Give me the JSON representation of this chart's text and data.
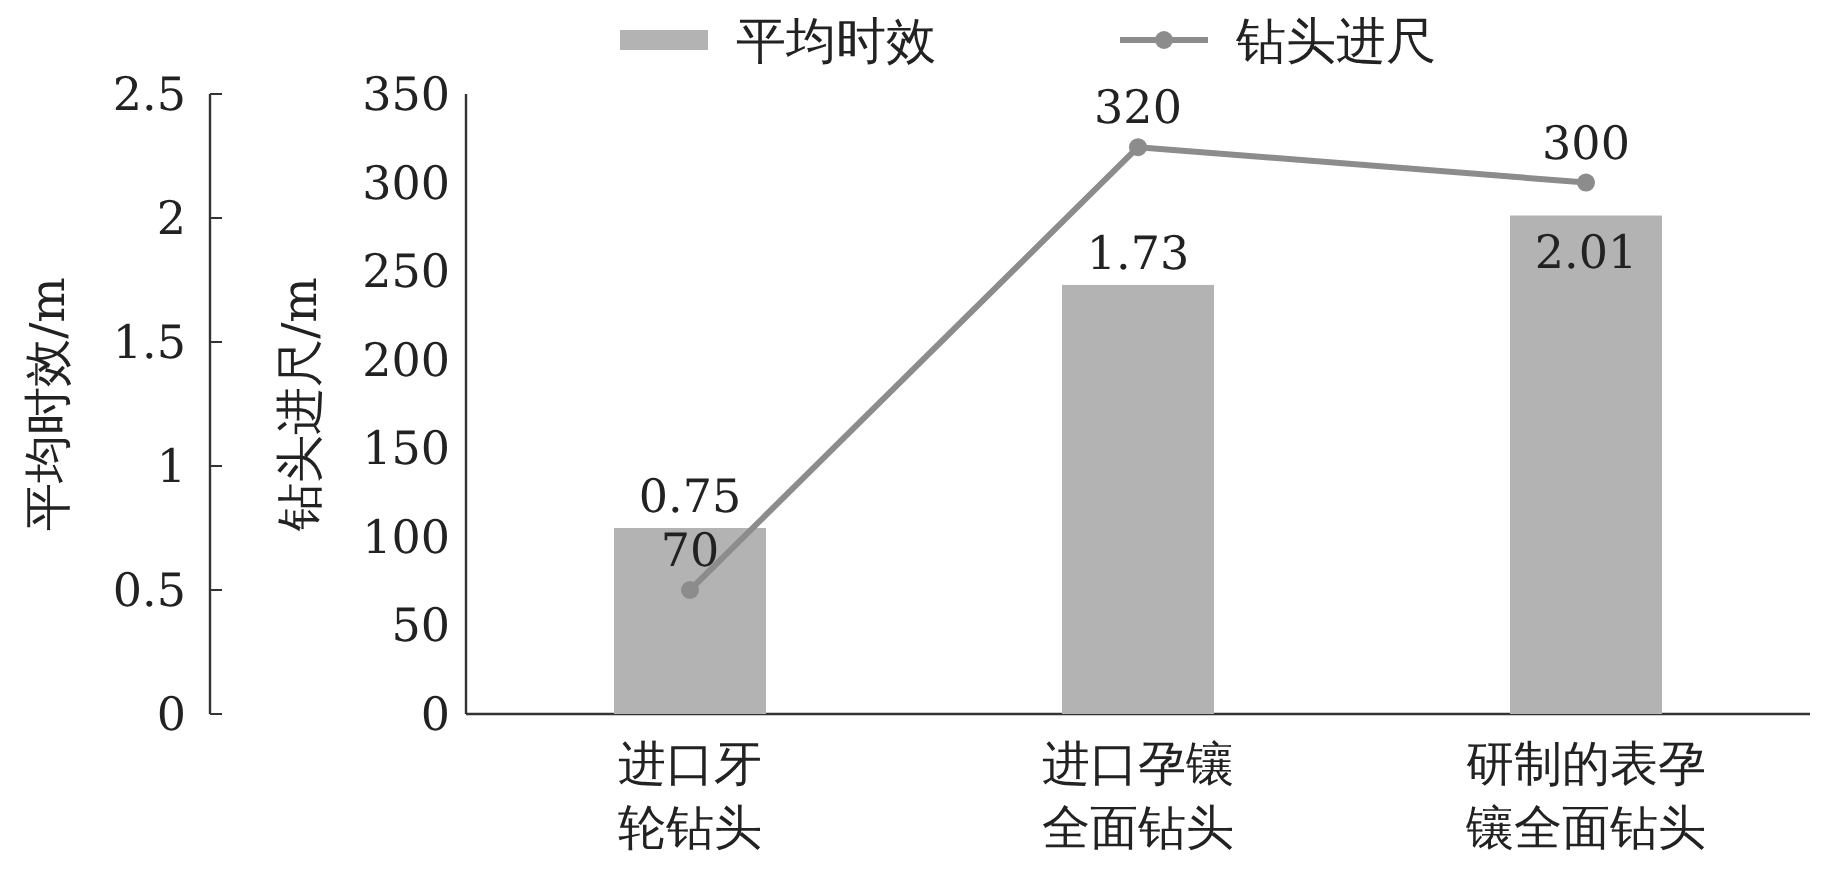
{
  "chart_data": {
    "type": "bar",
    "categories": [
      "进口牙轮钻头",
      "进口孕镶全面钻头",
      "研制的表孕镶全面钻头"
    ],
    "ylabel": "钻头进尺/m",
    "y2label": "平均时效/m",
    "ylim": [
      0,
      350
    ],
    "yticks": [
      0,
      50,
      100,
      150,
      200,
      250,
      300,
      350
    ],
    "y2lim": [
      0,
      2.5
    ],
    "y2ticks": [
      0,
      0.5,
      1,
      1.5,
      2,
      2.5
    ],
    "series": [
      {
        "name": "平均时效",
        "axis": "y2",
        "color": "#b3b3b3",
        "values": [
          0.75,
          1.73,
          2.01
        ]
      },
      {
        "name": "钻头进尺",
        "type": "line",
        "color": "#8c8c8c",
        "marker": "circle",
        "values": [
          70,
          320,
          300
        ]
      }
    ],
    "data_labels": true,
    "legend": "top",
    "grid": false
  }
}
